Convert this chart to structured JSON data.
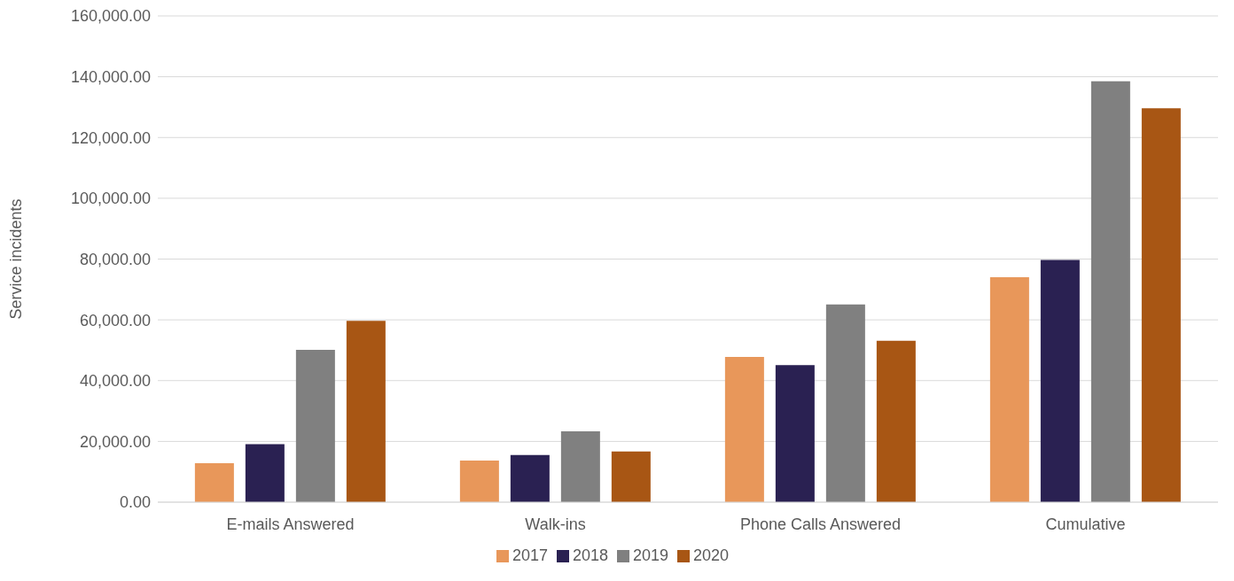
{
  "chart_data": {
    "type": "bar",
    "ylabel": "Service incidents",
    "categories": [
      "E-mails Answered",
      "Walk-ins",
      "Phone Calls Answered",
      "Cumulative"
    ],
    "series": [
      {
        "name": "2017",
        "color": "#e8975a",
        "values": [
          12800,
          13700,
          47800,
          74000
        ]
      },
      {
        "name": "2018",
        "color": "#2a2152",
        "values": [
          19100,
          15500,
          45100,
          79700
        ]
      },
      {
        "name": "2019",
        "color": "#808080",
        "values": [
          50100,
          23300,
          65100,
          138500
        ]
      },
      {
        "name": "2020",
        "color": "#a85614",
        "values": [
          59700,
          16700,
          53100,
          129600
        ]
      }
    ],
    "ylim": [
      0,
      160000
    ],
    "yticks": [
      {
        "value": 0,
        "label": "0.00"
      },
      {
        "value": 20000,
        "label": "20,000.00"
      },
      {
        "value": 40000,
        "label": "40,000.00"
      },
      {
        "value": 60000,
        "label": "60,000.00"
      },
      {
        "value": 80000,
        "label": "80,000.00"
      },
      {
        "value": 100000,
        "label": "100,000.00"
      },
      {
        "value": 120000,
        "label": "120,000.00"
      },
      {
        "value": 140000,
        "label": "140,000.00"
      },
      {
        "value": 160000,
        "label": "160,000.00"
      }
    ],
    "grid": "y",
    "legend": "bottom"
  }
}
